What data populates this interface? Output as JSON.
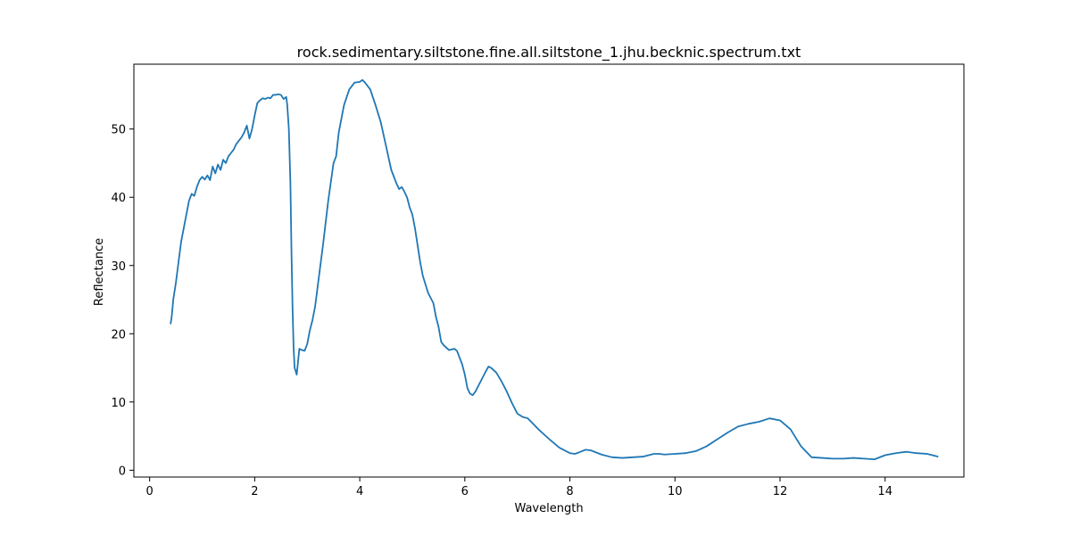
{
  "chart_data": {
    "type": "line",
    "title": "rock.sedimentary.siltstone.fine.all.siltstone_1.jhu.becknic.spectrum.txt",
    "xlabel": "Wavelength",
    "ylabel": "Reflectance",
    "xlim": [
      -0.3,
      15.5
    ],
    "ylim": [
      -1.0,
      59.5
    ],
    "xticks": [
      0,
      2,
      4,
      6,
      8,
      10,
      12,
      14
    ],
    "yticks": [
      0,
      10,
      20,
      30,
      40,
      50
    ],
    "grid": false,
    "line_color": "#1f77b4",
    "series": [
      {
        "x": [
          0.4,
          0.42,
          0.45,
          0.5,
          0.55,
          0.6,
          0.65,
          0.7,
          0.75,
          0.8,
          0.85,
          0.9,
          0.95,
          1.0,
          1.05,
          1.1,
          1.15,
          1.2,
          1.25,
          1.3,
          1.35,
          1.4,
          1.45,
          1.5,
          1.55,
          1.6,
          1.65,
          1.7,
          1.75,
          1.8,
          1.85,
          1.9,
          1.95,
          2.0,
          2.05,
          2.1,
          2.15,
          2.2,
          2.25,
          2.3,
          2.35,
          2.4,
          2.45,
          2.5,
          2.55,
          2.6,
          2.62,
          2.65,
          2.68,
          2.7,
          2.72,
          2.74,
          2.76,
          2.78,
          2.8,
          2.85,
          2.9,
          2.95,
          3.0,
          3.05,
          3.1,
          3.15,
          3.2,
          3.3,
          3.4,
          3.5,
          3.55,
          3.6,
          3.7,
          3.8,
          3.9,
          4.0,
          4.05,
          4.1,
          4.2,
          4.3,
          4.4,
          4.5,
          4.6,
          4.7,
          4.75,
          4.8,
          4.85,
          4.9,
          4.95,
          5.0,
          5.05,
          5.1,
          5.15,
          5.2,
          5.3,
          5.4,
          5.45,
          5.5,
          5.55,
          5.6,
          5.7,
          5.8,
          5.85,
          5.9,
          5.95,
          6.0,
          6.05,
          6.1,
          6.15,
          6.2,
          6.3,
          6.4,
          6.45,
          6.5,
          6.6,
          6.7,
          6.8,
          6.9,
          7.0,
          7.1,
          7.2,
          7.4,
          7.6,
          7.8,
          8.0,
          8.1,
          8.2,
          8.3,
          8.4,
          8.6,
          8.8,
          9.0,
          9.2,
          9.4,
          9.6,
          9.7,
          9.8,
          10.0,
          10.2,
          10.4,
          10.6,
          10.8,
          11.0,
          11.2,
          11.4,
          11.6,
          11.8,
          12.0,
          12.2,
          12.4,
          12.6,
          12.8,
          13.0,
          13.2,
          13.4,
          13.6,
          13.8,
          14.0,
          14.2,
          14.4,
          14.6,
          14.8,
          15.0
        ],
        "values": [
          21.5,
          22.5,
          25.0,
          27.5,
          30.5,
          33.5,
          35.5,
          37.5,
          39.5,
          40.5,
          40.2,
          41.5,
          42.5,
          43.0,
          42.6,
          43.2,
          42.5,
          44.5,
          43.5,
          44.8,
          44.0,
          45.5,
          45.0,
          46.0,
          46.5,
          47.0,
          47.8,
          48.3,
          48.8,
          49.5,
          50.5,
          48.6,
          50.0,
          52.0,
          53.8,
          54.2,
          54.5,
          54.4,
          54.6,
          54.5,
          55.0,
          55.0,
          55.1,
          55.0,
          54.4,
          54.7,
          53.5,
          50.0,
          42.0,
          32.0,
          24.0,
          18.0,
          15.0,
          14.5,
          14.0,
          17.8,
          17.6,
          17.5,
          18.5,
          20.5,
          22.0,
          24.0,
          27.0,
          33.0,
          39.5,
          45.0,
          46.0,
          49.5,
          53.5,
          55.8,
          56.8,
          56.9,
          57.2,
          56.8,
          55.8,
          53.5,
          51.0,
          47.5,
          44.0,
          42.0,
          41.2,
          41.5,
          40.8,
          40.0,
          38.5,
          37.5,
          35.5,
          33.0,
          30.5,
          28.5,
          26.0,
          24.5,
          22.5,
          21.0,
          18.8,
          18.3,
          17.6,
          17.8,
          17.5,
          16.5,
          15.5,
          14.0,
          12.0,
          11.2,
          11.0,
          11.5,
          13.0,
          14.5,
          15.2,
          15.0,
          14.3,
          13.0,
          11.5,
          9.8,
          8.3,
          7.8,
          7.6,
          6.0,
          4.6,
          3.3,
          2.5,
          2.4,
          2.7,
          3.0,
          2.9,
          2.3,
          1.9,
          1.8,
          1.9,
          2.0,
          2.4,
          2.4,
          2.3,
          2.4,
          2.5,
          2.8,
          3.5,
          4.5,
          5.5,
          6.4,
          6.8,
          7.1,
          7.6,
          7.3,
          6.0,
          3.5,
          1.9,
          1.8,
          1.7,
          1.7,
          1.8,
          1.7,
          1.6,
          2.2,
          2.5,
          2.7,
          2.5,
          2.4,
          2.0
        ]
      }
    ]
  }
}
